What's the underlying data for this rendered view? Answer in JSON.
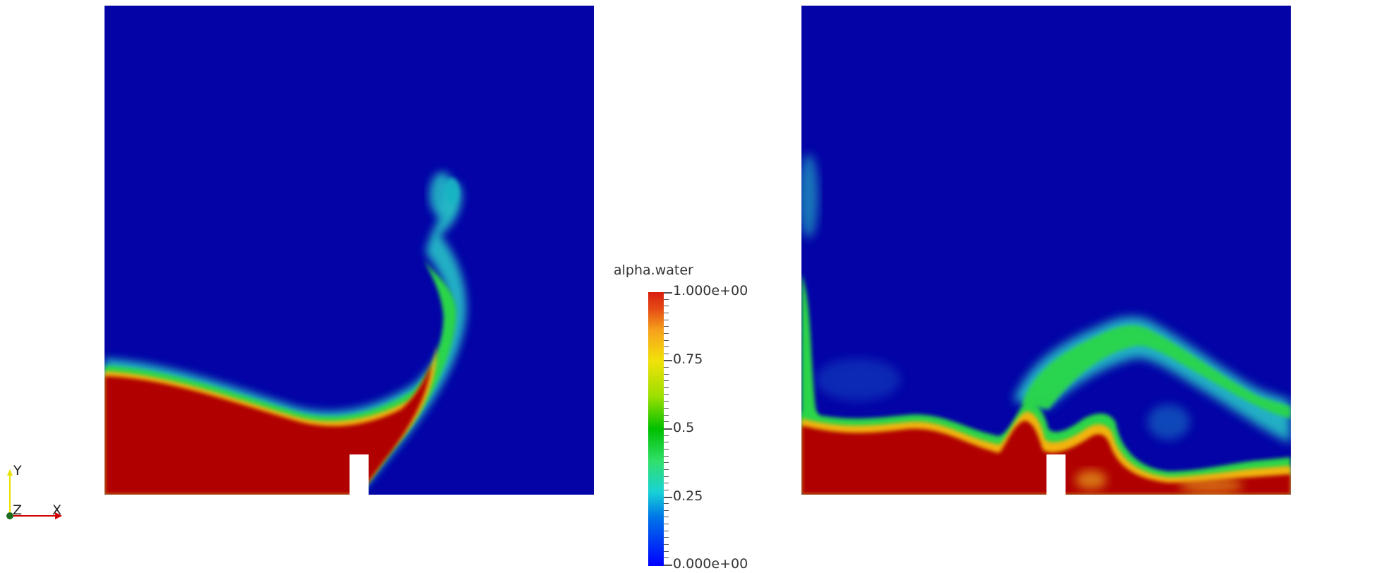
{
  "legend": {
    "title": "alpha.water",
    "ticks": [
      "1.000e+00",
      "0.75",
      "0.5",
      "0.25",
      "0.000e+00"
    ]
  },
  "axes": {
    "y": "Y",
    "z": "Z",
    "x": "X"
  },
  "colors": {
    "background": "#ffffff",
    "air": "#0303a6",
    "water": "#b00000",
    "interface_green": "#2bd64a",
    "interface_cyan": "#26c3c8",
    "obstacle": "#ffffff"
  }
}
